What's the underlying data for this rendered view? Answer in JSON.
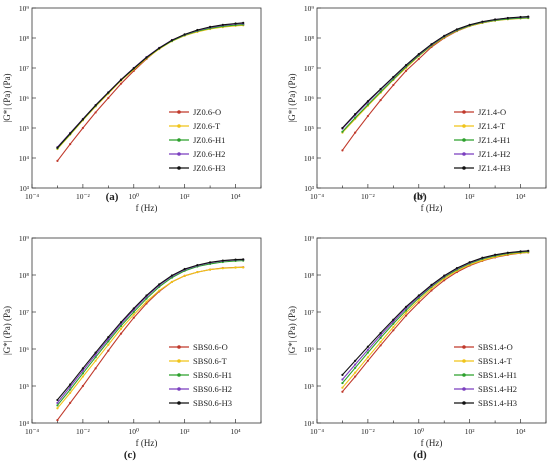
{
  "colors": {
    "O": "#c0392b",
    "T": "#f0c419",
    "H1": "#2ca02c",
    "H2": "#7b3fbf",
    "H3": "#111111"
  },
  "chart_data": [
    {
      "type": "line",
      "panel_label": "(a)",
      "xlabel": "f (Hz)",
      "ylabel": "|G*| (Pa) (Pa)",
      "x_scale": "log",
      "y_scale": "log",
      "xlim": [
        0.0001,
        100000
      ],
      "ylim": [
        1000,
        1000000000
      ],
      "x_ticks": [
        "10⁻⁴",
        "10⁻²",
        "10⁰",
        "10²",
        "10⁴"
      ],
      "y_ticks": [
        "10³",
        "10⁴",
        "10⁵",
        "10⁶",
        "10⁷",
        "10⁸",
        "10⁹"
      ],
      "legend_position": "bottom-right",
      "x": [
        0.001,
        0.00316,
        0.01,
        0.0316,
        0.1,
        0.316,
        1,
        3.16,
        10,
        31.6,
        100,
        316,
        1000,
        3160,
        10000,
        20000
      ],
      "series": [
        {
          "name": "JZ0.6-O",
          "key": "O",
          "values": [
            8000,
            29000,
            100000,
            330000,
            1000000,
            3000000,
            8000000,
            20000000,
            45000000,
            85000000,
            130000000,
            170000000,
            210000000,
            240000000,
            260000000,
            270000000
          ]
        },
        {
          "name": "JZ0.6-T",
          "key": "T",
          "values": [
            20000,
            60000,
            180000,
            520000,
            1400000,
            3800000,
            9000000,
            21000000,
            43000000,
            78000000,
            120000000,
            160000000,
            200000000,
            230000000,
            255000000,
            265000000
          ]
        },
        {
          "name": "JZ0.6-H1",
          "key": "H1",
          "values": [
            21000,
            63000,
            190000,
            550000,
            1500000,
            4000000,
            9500000,
            22000000,
            45000000,
            80000000,
            125000000,
            170000000,
            210000000,
            245000000,
            270000000,
            280000000
          ]
        },
        {
          "name": "JZ0.6-H2",
          "key": "H2",
          "values": [
            23000,
            68000,
            200000,
            580000,
            1550000,
            4100000,
            10000000,
            23000000,
            47000000,
            85000000,
            130000000,
            180000000,
            225000000,
            265000000,
            295000000,
            305000000
          ]
        },
        {
          "name": "JZ0.6-H3",
          "key": "H3",
          "values": [
            22000,
            66000,
            195000,
            570000,
            1530000,
            4050000,
            9800000,
            22500000,
            46000000,
            84000000,
            132000000,
            185000000,
            235000000,
            275000000,
            305000000,
            320000000
          ]
        }
      ]
    },
    {
      "type": "line",
      "panel_label": "(b)",
      "xlabel": "f (Hz)",
      "ylabel": "|G*| (Pa) (Pa)",
      "x_scale": "log",
      "y_scale": "log",
      "xlim": [
        0.0001,
        100000
      ],
      "ylim": [
        1000,
        1000000000
      ],
      "x_ticks": [
        "10⁻⁴",
        "10⁻²",
        "10⁰",
        "10²",
        "10⁴"
      ],
      "y_ticks": [
        "10³",
        "10⁴",
        "10⁵",
        "10⁶",
        "10⁷",
        "10⁸",
        "10⁹"
      ],
      "legend_position": "bottom-right",
      "x": [
        0.001,
        0.00316,
        0.01,
        0.0316,
        0.1,
        0.316,
        1,
        3.16,
        10,
        31.6,
        100,
        316,
        1000,
        3160,
        10000,
        20000
      ],
      "series": [
        {
          "name": "JZ1.4-O",
          "key": "O",
          "values": [
            18000,
            70000,
            250000,
            850000,
            2700000,
            8000000,
            20000000,
            50000000,
            100000000,
            170000000,
            250000000,
            320000000,
            380000000,
            430000000,
            460000000,
            470000000
          ]
        },
        {
          "name": "JZ1.4-T",
          "key": "T",
          "values": [
            70000,
            200000,
            550000,
            1500000,
            4000000,
            10000000,
            25000000,
            55000000,
            105000000,
            175000000,
            250000000,
            320000000,
            380000000,
            420000000,
            450000000,
            460000000
          ]
        },
        {
          "name": "JZ1.4-H1",
          "key": "H1",
          "values": [
            75000,
            220000,
            600000,
            1600000,
            4200000,
            11000000,
            26000000,
            57000000,
            110000000,
            180000000,
            260000000,
            330000000,
            390000000,
            430000000,
            460000000,
            470000000
          ]
        },
        {
          "name": "JZ1.4-H2",
          "key": "H2",
          "values": [
            95000,
            270000,
            720000,
            1900000,
            4800000,
            12000000,
            28000000,
            60000000,
            115000000,
            190000000,
            270000000,
            345000000,
            410000000,
            460000000,
            490000000,
            505000000
          ]
        },
        {
          "name": "JZ1.4-H3",
          "key": "H3",
          "values": [
            100000,
            290000,
            780000,
            2000000,
            5000000,
            12500000,
            29000000,
            62000000,
            118000000,
            195000000,
            275000000,
            350000000,
            415000000,
            465000000,
            500000000,
            515000000
          ]
        }
      ]
    },
    {
      "type": "line",
      "panel_label": "(c)",
      "xlabel": "f (Hz)",
      "ylabel": "|G*| (Pa) (Pa)",
      "x_scale": "log",
      "y_scale": "log",
      "xlim": [
        0.0001,
        100000
      ],
      "ylim": [
        10000,
        1000000000
      ],
      "x_ticks": [
        "10⁻⁴",
        "10⁻²",
        "10⁰",
        "10²",
        "10⁴"
      ],
      "y_ticks": [
        "10⁴",
        "10⁵",
        "10⁶",
        "10⁷",
        "10⁸",
        "10⁹"
      ],
      "legend_position": "bottom-right",
      "x": [
        0.001,
        0.00316,
        0.01,
        0.0316,
        0.1,
        0.316,
        1,
        3.16,
        10,
        31.6,
        100,
        316,
        1000,
        3160,
        10000,
        20000
      ],
      "series": [
        {
          "name": "SBS0.6-O",
          "key": "O",
          "values": [
            12000,
            35000,
            100000,
            300000,
            900000,
            2600000,
            7000000,
            17000000,
            36000000,
            65000000,
            95000000,
            120000000,
            140000000,
            155000000,
            160000000,
            162000000
          ]
        },
        {
          "name": "SBS0.6-T",
          "key": "T",
          "values": [
            25000,
            65000,
            180000,
            480000,
            1300000,
            3500000,
            8500000,
            19000000,
            38000000,
            65000000,
            95000000,
            120000000,
            140000000,
            152000000,
            158000000,
            160000000
          ]
        },
        {
          "name": "SBS0.6-H1",
          "key": "H1",
          "values": [
            30000,
            80000,
            220000,
            600000,
            1600000,
            4200000,
            10000000,
            23000000,
            48000000,
            85000000,
            130000000,
            170000000,
            200000000,
            225000000,
            240000000,
            245000000
          ]
        },
        {
          "name": "SBS0.6-H2",
          "key": "H2",
          "values": [
            35000,
            95000,
            260000,
            700000,
            1850000,
            4800000,
            11500000,
            26000000,
            53000000,
            93000000,
            140000000,
            180000000,
            215000000,
            240000000,
            255000000,
            260000000
          ]
        },
        {
          "name": "SBS0.6-H3",
          "key": "H3",
          "values": [
            42000,
            110000,
            300000,
            800000,
            2100000,
            5300000,
            12500000,
            28000000,
            56000000,
            97000000,
            145000000,
            185000000,
            220000000,
            245000000,
            260000000,
            265000000
          ]
        }
      ]
    },
    {
      "type": "line",
      "panel_label": "(d)",
      "xlabel": "f (Hz)",
      "ylabel": "|G*| (Pa) (Pa)",
      "x_scale": "log",
      "y_scale": "log",
      "xlim": [
        0.0001,
        100000
      ],
      "ylim": [
        10000,
        1000000000
      ],
      "x_ticks": [
        "10⁻⁴",
        "10⁻²",
        "10⁰",
        "10²",
        "10⁴"
      ],
      "y_ticks": [
        "10⁴",
        "10⁵",
        "10⁶",
        "10⁷",
        "10⁸",
        "10⁹"
      ],
      "legend_position": "bottom-right",
      "x": [
        0.001,
        0.00316,
        0.01,
        0.0316,
        0.1,
        0.316,
        1,
        3.16,
        10,
        31.6,
        100,
        316,
        1000,
        3160,
        10000,
        20000
      ],
      "series": [
        {
          "name": "SBS1.4-O",
          "key": "O",
          "values": [
            70000,
            180000,
            480000,
            1250000,
            3200000,
            8000000,
            18000000,
            38000000,
            72000000,
            120000000,
            180000000,
            240000000,
            300000000,
            350000000,
            390000000,
            405000000
          ]
        },
        {
          "name": "SBS1.4-T",
          "key": "T",
          "values": [
            90000,
            230000,
            600000,
            1550000,
            3900000,
            9500000,
            21000000,
            43000000,
            80000000,
            130000000,
            190000000,
            250000000,
            310000000,
            360000000,
            395000000,
            410000000
          ]
        },
        {
          "name": "SBS1.4-H1",
          "key": "H1",
          "values": [
            120000,
            310000,
            800000,
            2000000,
            4800000,
            11000000,
            24000000,
            48000000,
            87000000,
            140000000,
            205000000,
            270000000,
            330000000,
            380000000,
            415000000,
            430000000
          ]
        },
        {
          "name": "SBS1.4-H2",
          "key": "H2",
          "values": [
            150000,
            380000,
            950000,
            2350000,
            5500000,
            12500000,
            26000000,
            51000000,
            92000000,
            148000000,
            215000000,
            285000000,
            345000000,
            395000000,
            430000000,
            445000000
          ]
        },
        {
          "name": "SBS1.4-H3",
          "key": "H3",
          "values": [
            200000,
            480000,
            1150000,
            2700000,
            6200000,
            13800000,
            28000000,
            54000000,
            96000000,
            154000000,
            222000000,
            292000000,
            352000000,
            400000000,
            435000000,
            450000000
          ]
        }
      ]
    }
  ]
}
